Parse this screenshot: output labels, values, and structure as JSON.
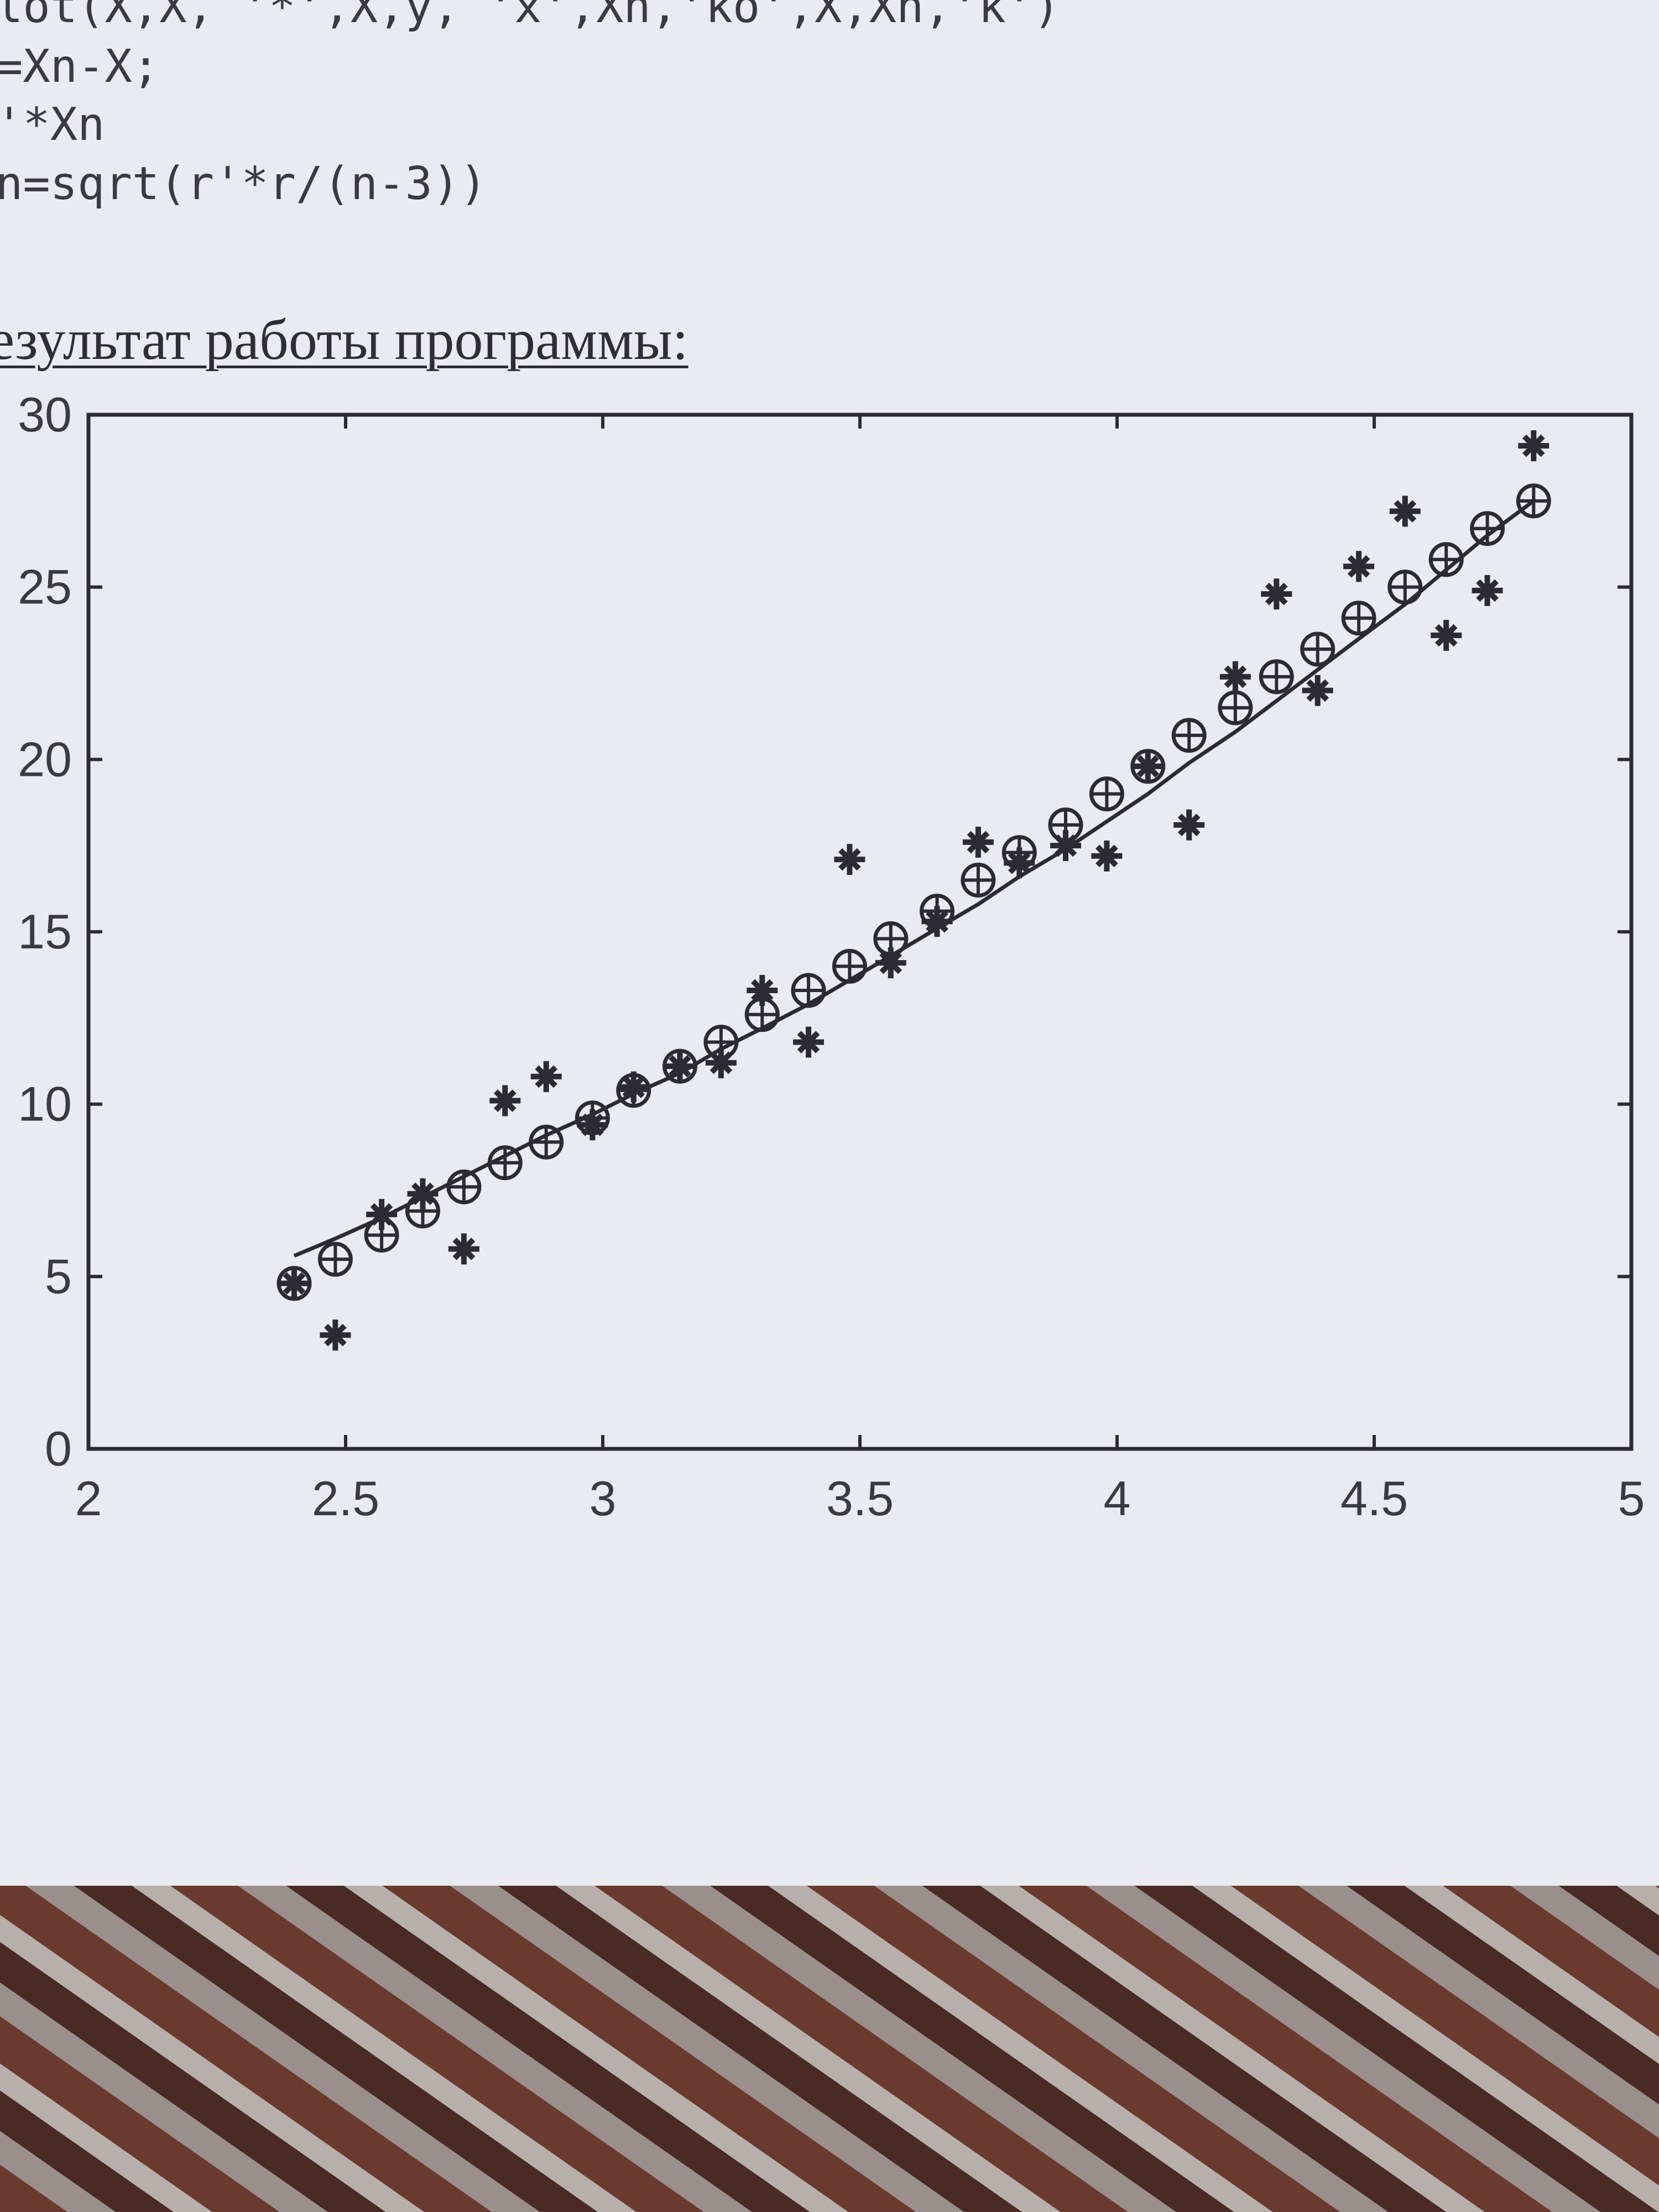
{
  "code_lines": [
    "lot(X,X, '*',X,y, 'x',Xn,'ko',X,Xn,'k')",
    "=Xn-X;",
    "'*Xn",
    "n=sqrt(r'*r/(n-3))"
  ],
  "heading": "езультат работы программы:",
  "chart_data": {
    "type": "scatter",
    "title": "",
    "xlabel": "",
    "ylabel": "",
    "xlim": [
      2,
      5
    ],
    "ylim": [
      0,
      30
    ],
    "x_ticks": [
      "2",
      "2.5",
      "3",
      "3.5",
      "4",
      "4.5",
      "5"
    ],
    "y_ticks": [
      "0",
      "5",
      "10",
      "15",
      "20",
      "25",
      "30"
    ],
    "grid": false,
    "series": [
      {
        "marker": "star",
        "x": [
          2.4,
          2.48,
          2.57,
          2.65,
          2.73,
          2.81,
          2.89,
          2.98,
          3.06,
          3.15,
          3.23,
          3.31,
          3.4,
          3.48,
          3.56,
          3.65,
          3.73,
          3.81,
          3.9,
          3.98,
          4.06,
          4.14,
          4.23,
          4.31,
          4.39,
          4.47,
          4.56,
          4.64,
          4.72,
          4.81
        ],
        "y": [
          4.8,
          3.3,
          6.8,
          7.4,
          5.8,
          10.1,
          10.8,
          9.4,
          10.5,
          11.1,
          11.2,
          13.3,
          11.8,
          17.1,
          14.1,
          15.3,
          17.6,
          17.0,
          17.5,
          17.2,
          19.8,
          18.1,
          22.4,
          24.8,
          22.0,
          25.6,
          27.2,
          23.6,
          24.9,
          29.1
        ]
      },
      {
        "marker": "circle-cross",
        "x": [
          2.4,
          2.48,
          2.57,
          2.65,
          2.73,
          2.81,
          2.89,
          2.98,
          3.06,
          3.15,
          3.23,
          3.31,
          3.4,
          3.48,
          3.56,
          3.65,
          3.73,
          3.81,
          3.9,
          3.98,
          4.06,
          4.14,
          4.23,
          4.31,
          4.39,
          4.47,
          4.56,
          4.64,
          4.72,
          4.81
        ],
        "y": [
          4.8,
          5.5,
          6.2,
          6.9,
          7.6,
          8.3,
          8.9,
          9.6,
          10.4,
          11.1,
          11.8,
          12.6,
          13.3,
          14.0,
          14.8,
          15.6,
          16.5,
          17.3,
          18.1,
          19.0,
          19.8,
          20.7,
          21.5,
          22.4,
          23.2,
          24.1,
          25.0,
          25.8,
          26.7,
          27.5
        ]
      },
      {
        "marker": "line",
        "x": [
          2.4,
          2.48,
          2.57,
          2.65,
          2.73,
          2.81,
          2.89,
          2.98,
          3.06,
          3.15,
          3.23,
          3.31,
          3.4,
          3.48,
          3.56,
          3.65,
          3.73,
          3.81,
          3.9,
          3.98,
          4.06,
          4.14,
          4.23,
          4.31,
          4.39,
          4.47,
          4.56,
          4.64,
          4.72,
          4.81
        ],
        "y": [
          5.6,
          6.1,
          6.7,
          7.3,
          7.9,
          8.5,
          9.1,
          9.7,
          10.3,
          10.9,
          11.6,
          12.2,
          12.9,
          13.6,
          14.3,
          15.1,
          15.8,
          16.6,
          17.4,
          18.2,
          19.0,
          19.9,
          20.8,
          21.7,
          22.6,
          23.5,
          24.5,
          25.5,
          26.5,
          27.5
        ]
      }
    ]
  }
}
